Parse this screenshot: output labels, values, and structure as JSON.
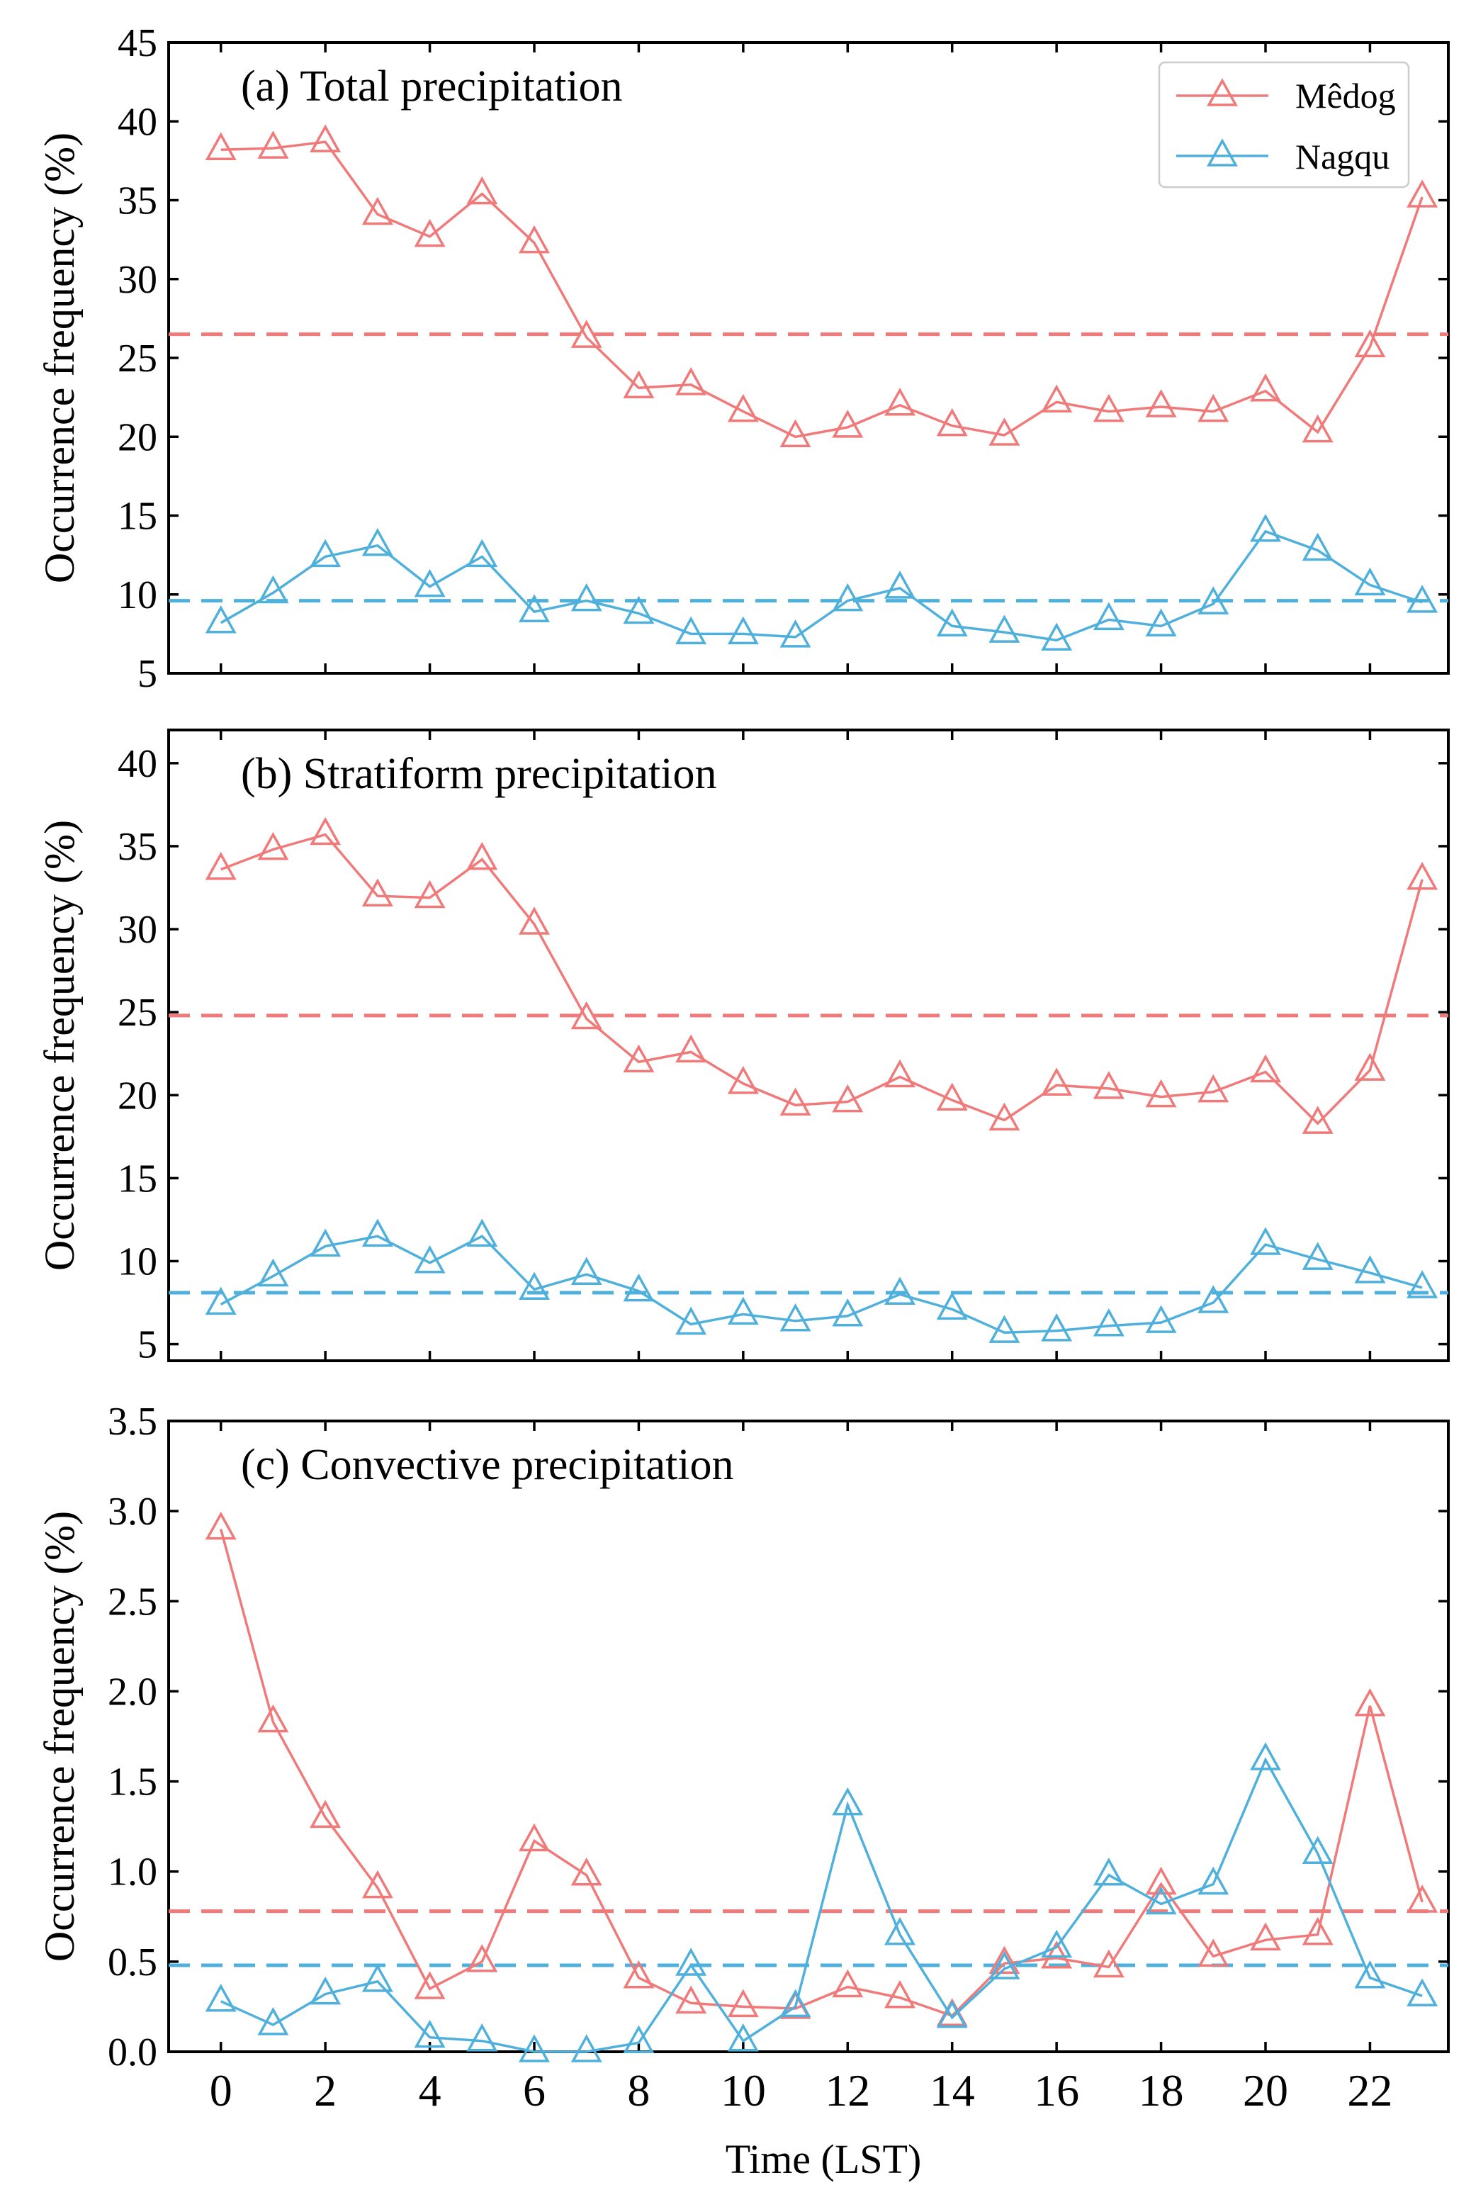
{
  "figure": {
    "xlabel": "Time (LST)",
    "x_ticks": [
      0,
      2,
      4,
      6,
      8,
      10,
      12,
      14,
      16,
      18,
      20,
      22
    ],
    "legend": [
      {
        "name": "Mêdog",
        "color": "#f07a7a"
      },
      {
        "name": "Nagqu",
        "color": "#4fb0dc"
      }
    ]
  },
  "chart_data": [
    {
      "type": "line",
      "title": "(a) Total precipitation",
      "xlabel": "",
      "ylabel": "Occurrence frequency (%)",
      "xlim": [
        -1,
        23.5
      ],
      "ylim": [
        5,
        45
      ],
      "y_ticks": [
        5,
        10,
        15,
        20,
        25,
        30,
        35,
        40,
        45
      ],
      "y_tick_labels": [
        "5",
        "10",
        "15",
        "20",
        "25",
        "30",
        "35",
        "40",
        "45"
      ],
      "x": [
        0,
        1,
        2,
        3,
        4,
        5,
        6,
        7,
        8,
        9,
        10,
        11,
        12,
        13,
        14,
        15,
        16,
        17,
        18,
        19,
        20,
        21,
        22,
        23
      ],
      "series": [
        {
          "name": "Mêdog",
          "color": "#f07a7a",
          "mean": 26.5,
          "values": [
            38.2,
            38.3,
            38.7,
            34.1,
            32.7,
            35.4,
            32.3,
            26.3,
            23.1,
            23.3,
            21.6,
            20.0,
            20.6,
            22.0,
            20.7,
            20.1,
            22.2,
            21.6,
            21.9,
            21.6,
            22.9,
            20.3,
            25.7,
            35.2
          ]
        },
        {
          "name": "Nagqu",
          "color": "#4fb0dc",
          "mean": 9.6,
          "values": [
            8.2,
            10.1,
            12.4,
            13.1,
            10.5,
            12.4,
            8.9,
            9.6,
            8.8,
            7.5,
            7.5,
            7.3,
            9.6,
            10.4,
            8.0,
            7.6,
            7.1,
            8.4,
            8.0,
            9.4,
            14.0,
            12.8,
            10.6,
            9.5
          ]
        }
      ]
    },
    {
      "type": "line",
      "title": "(b) Stratiform precipitation",
      "xlabel": "",
      "ylabel": "Occurrence frequency (%)",
      "xlim": [
        -1,
        23.5
      ],
      "ylim": [
        4,
        42
      ],
      "y_ticks": [
        5,
        10,
        15,
        20,
        25,
        30,
        35,
        40
      ],
      "y_tick_labels": [
        "5",
        "10",
        "15",
        "20",
        "25",
        "30",
        "35",
        "40"
      ],
      "x": [
        0,
        1,
        2,
        3,
        4,
        5,
        6,
        7,
        8,
        9,
        10,
        11,
        12,
        13,
        14,
        15,
        16,
        17,
        18,
        19,
        20,
        21,
        22,
        23
      ],
      "series": [
        {
          "name": "Mêdog",
          "color": "#f07a7a",
          "mean": 24.8,
          "values": [
            33.6,
            34.8,
            35.7,
            32.0,
            31.9,
            34.2,
            30.3,
            24.6,
            22.0,
            22.6,
            20.7,
            19.4,
            19.6,
            21.1,
            19.7,
            18.5,
            20.6,
            20.4,
            19.9,
            20.2,
            21.4,
            18.3,
            21.5,
            33.0
          ]
        },
        {
          "name": "Nagqu",
          "color": "#4fb0dc",
          "mean": 8.1,
          "values": [
            7.4,
            9.1,
            10.9,
            11.5,
            9.9,
            11.5,
            8.3,
            9.2,
            8.2,
            6.2,
            6.8,
            6.4,
            6.7,
            8.0,
            7.1,
            5.7,
            5.8,
            6.1,
            6.3,
            7.5,
            11.0,
            10.1,
            9.3,
            8.4
          ]
        }
      ]
    },
    {
      "type": "line",
      "title": "(c) Convective precipitation",
      "xlabel": "Time (LST)",
      "ylabel": "Occurrence frequency (%)",
      "xlim": [
        -1,
        23.5
      ],
      "ylim": [
        0,
        3.5
      ],
      "y_ticks": [
        0,
        0.5,
        1.0,
        1.5,
        2.0,
        2.5,
        3.0,
        3.5
      ],
      "y_tick_labels": [
        "0.0",
        "0.5",
        "1.0",
        "1.5",
        "2.0",
        "2.5",
        "3.0",
        "3.5"
      ],
      "x": [
        0,
        1,
        2,
        3,
        4,
        5,
        6,
        7,
        8,
        9,
        10,
        11,
        12,
        13,
        14,
        15,
        16,
        17,
        18,
        19,
        20,
        21,
        22,
        23
      ],
      "series": [
        {
          "name": "Mêdog",
          "color": "#f07a7a",
          "mean": 0.78,
          "values": [
            2.9,
            1.83,
            1.3,
            0.91,
            0.35,
            0.5,
            1.17,
            0.98,
            0.41,
            0.27,
            0.25,
            0.24,
            0.36,
            0.3,
            0.2,
            0.49,
            0.52,
            0.47,
            0.93,
            0.53,
            0.62,
            0.65,
            1.92,
            0.83
          ]
        },
        {
          "name": "Nagqu",
          "color": "#4fb0dc",
          "mean": 0.48,
          "values": [
            0.28,
            0.15,
            0.32,
            0.39,
            0.08,
            0.06,
            0.0,
            0.0,
            0.05,
            0.48,
            0.06,
            0.25,
            1.37,
            0.65,
            0.19,
            0.46,
            0.58,
            0.98,
            0.82,
            0.93,
            1.62,
            1.1,
            0.41,
            0.31
          ]
        }
      ]
    }
  ]
}
